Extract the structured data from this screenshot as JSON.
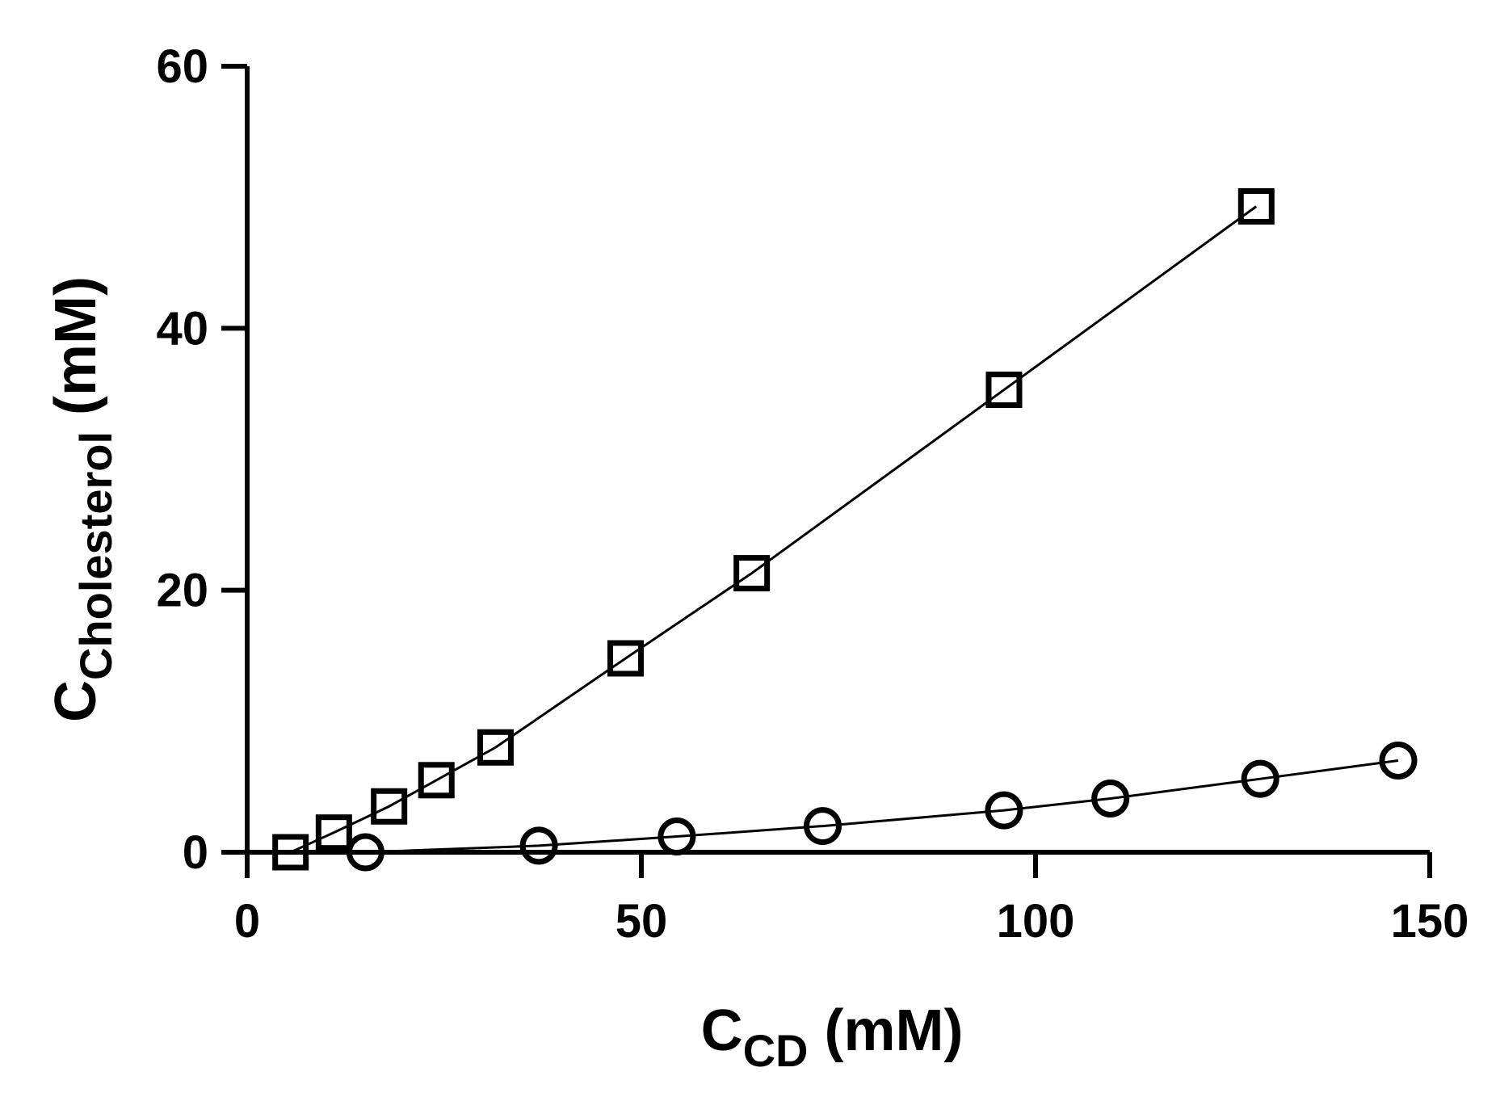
{
  "chart_data": {
    "type": "line",
    "title": "",
    "xlabel": {
      "main": "C",
      "sub": "CD",
      "unit": " (mM)"
    },
    "ylabel": {
      "main": "C",
      "sub": "Cholesterol",
      "unit": " (mM)"
    },
    "xlim": [
      0,
      150
    ],
    "ylim": [
      0,
      60
    ],
    "xticks": [
      0,
      50,
      100,
      150
    ],
    "yticks": [
      0,
      20,
      40,
      60
    ],
    "grid": false,
    "legend": "none",
    "series": [
      {
        "marker": "square",
        "x": [
          5.5,
          11,
          18,
          24,
          31.5,
          48,
          64,
          96,
          128
        ],
        "y": [
          0,
          1.5,
          3.5,
          5.5,
          8,
          14.8,
          21.3,
          35.3,
          49.3
        ]
      },
      {
        "marker": "circle",
        "x": [
          15,
          37,
          54.5,
          73,
          96,
          109.5,
          128.5,
          146
        ],
        "y": [
          0,
          0.5,
          1.2,
          2,
          3.2,
          4.1,
          5.6,
          7
        ]
      }
    ]
  }
}
